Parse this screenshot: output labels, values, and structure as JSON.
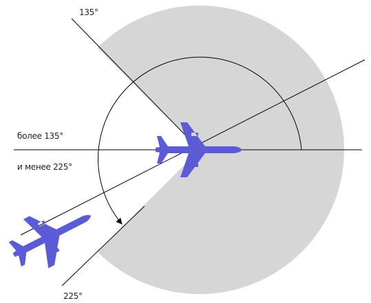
{
  "labels": {
    "angle_start": "135°",
    "angle_end": "225°",
    "range_more": "более 135°",
    "range_less": "и менее 225°"
  }
}
